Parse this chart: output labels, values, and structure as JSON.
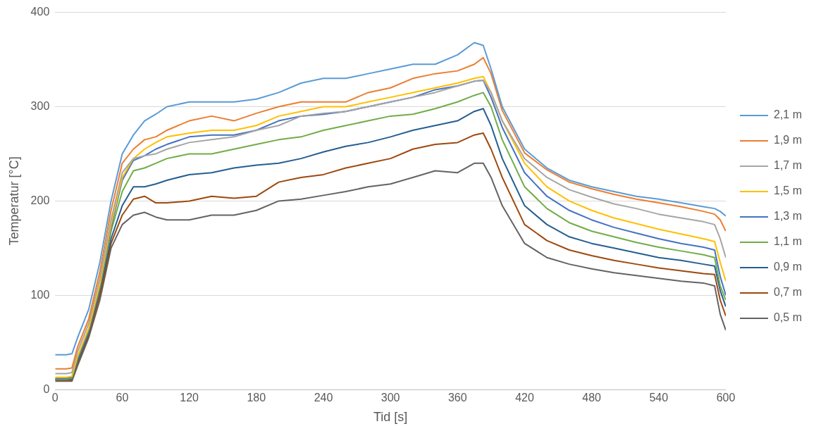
{
  "chart_data": {
    "type": "line",
    "xlabel": "Tid [s]",
    "ylabel": "Temperatur [°C]",
    "x": [
      0,
      10,
      15,
      20,
      30,
      40,
      50,
      60,
      70,
      80,
      90,
      100,
      120,
      140,
      160,
      180,
      200,
      220,
      240,
      260,
      280,
      300,
      320,
      340,
      360,
      375,
      383,
      390,
      400,
      420,
      440,
      460,
      480,
      500,
      520,
      540,
      560,
      580,
      590,
      595,
      600
    ],
    "xlim": [
      0,
      600
    ],
    "xticks": [
      0,
      60,
      120,
      180,
      240,
      300,
      360,
      420,
      480,
      540,
      600
    ],
    "ylim": [
      0,
      400
    ],
    "yticks": [
      0,
      100,
      200,
      300,
      400
    ],
    "grid": "y",
    "legend": "right",
    "marker": "none",
    "line_style": "solid",
    "series": [
      {
        "name": "2,1 m",
        "color": "#5b9bd5",
        "values": [
          37,
          37,
          38,
          55,
          85,
          135,
          200,
          250,
          270,
          285,
          292,
          300,
          305,
          305,
          305,
          308,
          315,
          325,
          330,
          330,
          335,
          340,
          345,
          345,
          355,
          368,
          365,
          340,
          300,
          255,
          235,
          222,
          215,
          210,
          205,
          202,
          198,
          194,
          192,
          189,
          184
        ]
      },
      {
        "name": "1,9 m",
        "color": "#ed7d31",
        "values": [
          22,
          22,
          23,
          45,
          75,
          125,
          190,
          240,
          255,
          265,
          268,
          275,
          285,
          290,
          285,
          293,
          300,
          305,
          305,
          305,
          315,
          320,
          330,
          335,
          338,
          345,
          352,
          335,
          296,
          251,
          233,
          220,
          213,
          207,
          202,
          198,
          194,
          189,
          186,
          180,
          168
        ]
      },
      {
        "name": "1,7 m",
        "color": "#a5a5a5",
        "values": [
          17,
          17,
          18,
          40,
          70,
          118,
          180,
          230,
          245,
          248,
          250,
          255,
          262,
          265,
          268,
          275,
          280,
          290,
          293,
          295,
          300,
          305,
          310,
          315,
          322,
          327,
          328,
          315,
          285,
          245,
          225,
          212,
          204,
          197,
          192,
          186,
          182,
          178,
          175,
          160,
          140
        ]
      },
      {
        "name": "1,5 m",
        "color": "#ffc000",
        "values": [
          13,
          13,
          14,
          35,
          65,
          112,
          175,
          225,
          245,
          255,
          262,
          268,
          272,
          275,
          275,
          280,
          290,
          295,
          300,
          300,
          305,
          310,
          315,
          320,
          325,
          330,
          332,
          315,
          285,
          240,
          215,
          200,
          190,
          182,
          176,
          170,
          165,
          160,
          157,
          135,
          115
        ]
      },
      {
        "name": "1,3 m",
        "color": "#4472c4",
        "values": [
          12,
          12,
          13,
          33,
          63,
          110,
          172,
          222,
          243,
          248,
          255,
          260,
          268,
          270,
          270,
          275,
          285,
          290,
          292,
          295,
          300,
          305,
          310,
          318,
          322,
          327,
          328,
          310,
          278,
          230,
          205,
          190,
          180,
          172,
          166,
          160,
          155,
          151,
          148,
          120,
          100
        ]
      },
      {
        "name": "1,1 m",
        "color": "#70ad47",
        "values": [
          11,
          11,
          12,
          32,
          62,
          108,
          168,
          210,
          232,
          235,
          240,
          245,
          250,
          250,
          255,
          260,
          265,
          268,
          275,
          280,
          285,
          290,
          292,
          298,
          305,
          312,
          315,
          300,
          265,
          215,
          192,
          177,
          168,
          162,
          156,
          151,
          147,
          143,
          140,
          110,
          95
        ]
      },
      {
        "name": "0,9 m",
        "color": "#255e91",
        "values": [
          11,
          11,
          11,
          30,
          60,
          105,
          160,
          195,
          215,
          215,
          218,
          222,
          228,
          230,
          235,
          238,
          240,
          245,
          252,
          258,
          262,
          268,
          275,
          280,
          285,
          295,
          298,
          280,
          245,
          195,
          175,
          162,
          155,
          150,
          145,
          140,
          137,
          133,
          131,
          105,
          88
        ]
      },
      {
        "name": "0,7 m",
        "color": "#9e480e",
        "values": [
          10,
          10,
          10,
          28,
          58,
          100,
          155,
          185,
          202,
          205,
          198,
          198,
          200,
          205,
          203,
          205,
          220,
          225,
          228,
          235,
          240,
          245,
          255,
          260,
          262,
          270,
          272,
          255,
          225,
          175,
          158,
          148,
          142,
          137,
          133,
          129,
          126,
          123,
          122,
          95,
          78
        ]
      },
      {
        "name": "0,5 m",
        "color": "#636363",
        "values": [
          9,
          9,
          9,
          25,
          55,
          95,
          150,
          175,
          185,
          188,
          183,
          180,
          180,
          185,
          185,
          190,
          200,
          202,
          206,
          210,
          215,
          218,
          225,
          232,
          230,
          240,
          240,
          225,
          195,
          155,
          140,
          133,
          128,
          124,
          121,
          118,
          115,
          113,
          110,
          80,
          63
        ]
      }
    ]
  }
}
